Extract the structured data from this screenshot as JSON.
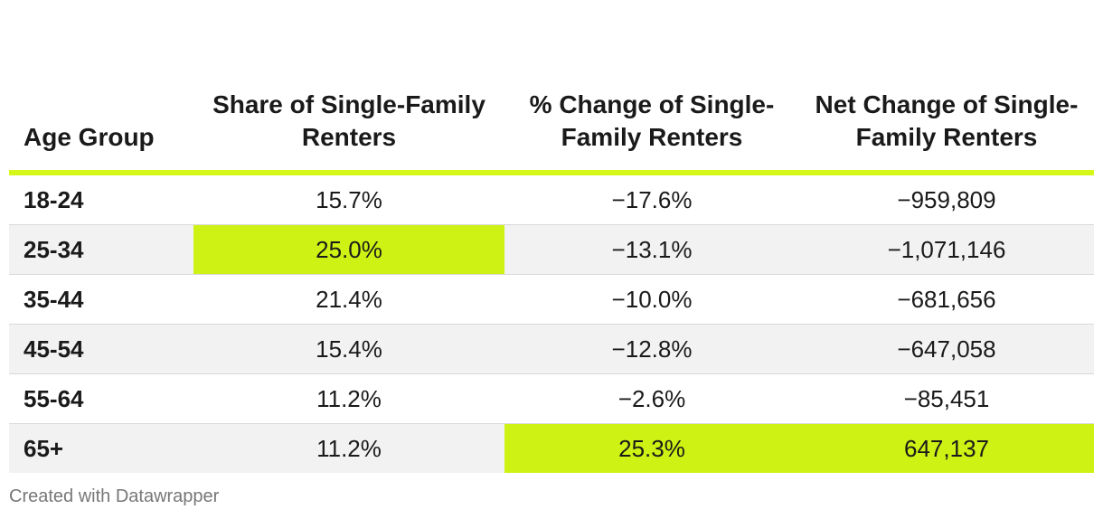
{
  "chart_data": {
    "type": "table",
    "columns": [
      "Age Group",
      "Share of Single-Family Renters",
      "% Change of Single-Family Renters",
      "Net Change of Single-Family Renters"
    ],
    "rows": [
      [
        "18-24",
        "15.7%",
        "−17.6%",
        "−959,809"
      ],
      [
        "25-34",
        "25.0%",
        "−13.1%",
        "−1,071,146"
      ],
      [
        "35-44",
        "21.4%",
        "−10.0%",
        "−681,656"
      ],
      [
        "45-54",
        "15.4%",
        "−12.8%",
        "−647,058"
      ],
      [
        "55-64",
        "11.2%",
        "−2.6%",
        "−85,451"
      ],
      [
        "65+",
        "11.2%",
        "25.3%",
        "647,137"
      ]
    ],
    "highlighted_cells": [
      {
        "row": 1,
        "col": 1
      },
      {
        "row": 5,
        "col": 2
      },
      {
        "row": 5,
        "col": 3
      }
    ]
  },
  "colors": {
    "accent": "#cef214",
    "header_rule": "#d6f71a",
    "stripe": "#f2f2f2",
    "footer_text": "#777777"
  },
  "footer": {
    "credit": "Created with Datawrapper"
  }
}
